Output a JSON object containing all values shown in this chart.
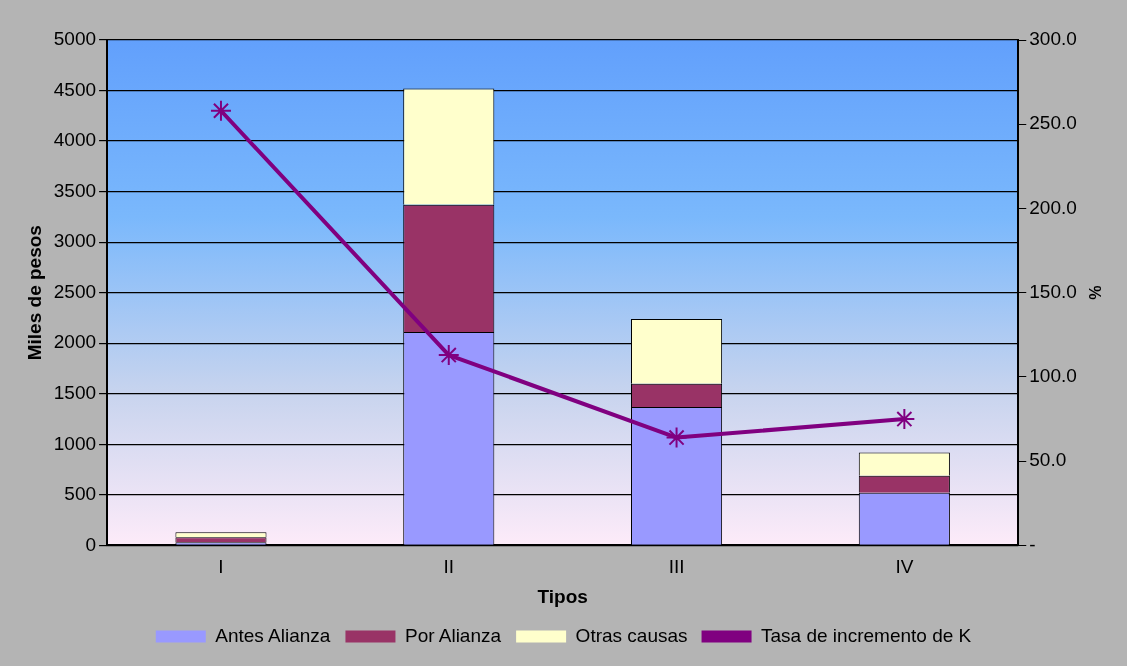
{
  "chart_data": {
    "type": "bar",
    "stacked": true,
    "xlabel": "Tipos",
    "ylabel": "Miles de pesos",
    "y2label": "%",
    "categories": [
      "I",
      "II",
      "III",
      "IV"
    ],
    "series": [
      {
        "name": "Antes Alianza",
        "color": "#9999ff",
        "values": [
          30,
          2110,
          1370,
          520
        ]
      },
      {
        "name": "Por Alianza",
        "color": "#993366",
        "values": [
          50,
          1260,
          230,
          170
        ]
      },
      {
        "name": "Otras causas",
        "color": "#ffffcc",
        "values": [
          50,
          1150,
          640,
          230
        ]
      },
      {
        "name": "Tasa de incremento de K",
        "type": "line",
        "axis": "y2",
        "color": "#800080",
        "values": [
          258,
          113,
          64,
          75
        ],
        "marker": "cross"
      }
    ],
    "ylim": [
      0,
      5000
    ],
    "yticks": [
      0,
      500,
      1000,
      1500,
      2000,
      2500,
      3000,
      3500,
      4000,
      4500,
      5000
    ],
    "y2lim": [
      0,
      300
    ],
    "y2ticks": [
      {
        "value": 0,
        "label": "-"
      },
      {
        "value": 50,
        "label": "50.0"
      },
      {
        "value": 100,
        "label": "100.0"
      },
      {
        "value": 150,
        "label": "150.0"
      },
      {
        "value": 200,
        "label": "200.0"
      },
      {
        "value": 250,
        "label": "250.0"
      },
      {
        "value": 300,
        "label": "300.0"
      }
    ],
    "grid": "y",
    "legend": "bottom"
  }
}
